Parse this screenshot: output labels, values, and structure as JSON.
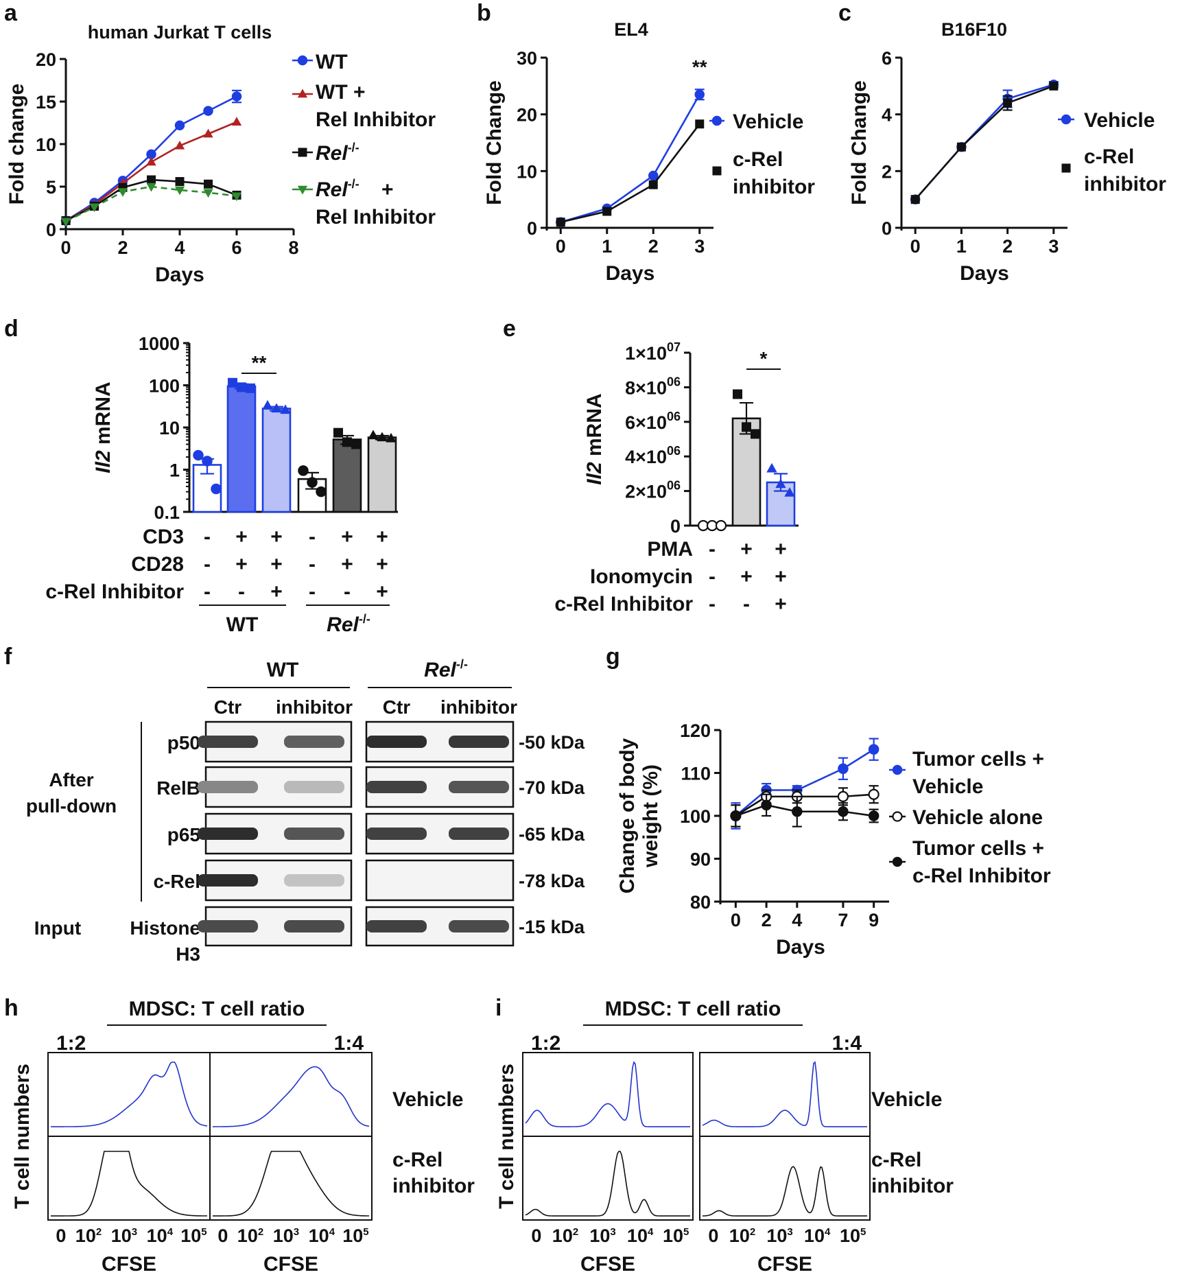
{
  "figure": {
    "width": 1720,
    "height": 1864
  },
  "panel_letters": [
    "a",
    "b",
    "c",
    "d",
    "e",
    "f",
    "g",
    "h",
    "i"
  ],
  "chart_data": [
    {
      "panel": "a",
      "type": "line",
      "title": "human Jurkat T cells",
      "xlabel": "Days",
      "ylabel": "Fold change",
      "xlim": [
        0,
        8
      ],
      "ylim": [
        0,
        20
      ],
      "xticks": [
        0,
        2,
        4,
        6,
        8
      ],
      "yticks": [
        0,
        5,
        10,
        15,
        20
      ],
      "legend": [
        "WT",
        "WT +\nRel Inhibitor",
        "Rel-/-",
        "Rel-/- +\nRel Inhibitor"
      ],
      "series": [
        {
          "name": "WT",
          "color": "#1f3ee0",
          "marker": "circle",
          "dash": false,
          "x": [
            0,
            1,
            2,
            3,
            4,
            5,
            6
          ],
          "y": [
            1.0,
            3.1,
            5.7,
            8.8,
            12.2,
            13.9,
            15.6
          ],
          "err": [
            0,
            0,
            0,
            0,
            0,
            0,
            0.7
          ]
        },
        {
          "name": "WT + Rel Inhibitor",
          "color": "#b22222",
          "marker": "triangle",
          "dash": false,
          "x": [
            0,
            1,
            2,
            3,
            4,
            5,
            6
          ],
          "y": [
            1.0,
            2.9,
            5.4,
            7.9,
            9.8,
            11.2,
            12.6
          ],
          "err": [
            0,
            0,
            0,
            0,
            0,
            0,
            0
          ]
        },
        {
          "name": "Rel-/-",
          "color": "#111111",
          "marker": "square",
          "dash": false,
          "x": [
            0,
            1,
            2,
            3,
            4,
            5,
            6
          ],
          "y": [
            1.0,
            2.7,
            4.9,
            5.8,
            5.6,
            5.3,
            4.0
          ],
          "err": [
            0,
            0,
            0,
            0,
            0,
            0,
            0
          ]
        },
        {
          "name": "Rel-/- + Rel Inhibitor",
          "color": "#2e8b2e",
          "marker": "triangle-down",
          "dash": true,
          "x": [
            0,
            1,
            2,
            3,
            4,
            5,
            6
          ],
          "y": [
            0.9,
            2.6,
            4.4,
            5.0,
            4.6,
            4.3,
            3.9
          ],
          "err": [
            0,
            0,
            0,
            0,
            0,
            0,
            0
          ]
        }
      ]
    },
    {
      "panel": "b",
      "type": "line",
      "title": "EL4",
      "xlabel": "Days",
      "ylabel": "Fold Change",
      "xlim": [
        -0.3,
        3.3
      ],
      "ylim": [
        0,
        30
      ],
      "xticks": [
        0,
        1,
        2,
        3
      ],
      "yticks": [
        0,
        10,
        20,
        30
      ],
      "legend": [
        "Vehicle",
        "c-Rel\ninhibitor"
      ],
      "annotation": "**",
      "series": [
        {
          "name": "Vehicle",
          "color": "#1f3ee0",
          "marker": "circle",
          "x": [
            0,
            1,
            2,
            3
          ],
          "y": [
            1.0,
            3.4,
            9.2,
            23.5
          ],
          "err": [
            0,
            0,
            0,
            0.9
          ]
        },
        {
          "name": "c-Rel inhibitor",
          "color": "#111111",
          "marker": "square",
          "x": [
            0,
            1,
            2,
            3
          ],
          "y": [
            1.0,
            2.9,
            7.6,
            18.3
          ],
          "err": [
            0,
            0,
            0,
            0
          ]
        }
      ]
    },
    {
      "panel": "c",
      "type": "line",
      "title": "B16F10",
      "xlabel": "Days",
      "ylabel": "Fold Change",
      "xlim": [
        -0.3,
        3.3
      ],
      "ylim": [
        0,
        6
      ],
      "xticks": [
        0,
        1,
        2,
        3
      ],
      "yticks": [
        0,
        2,
        4,
        6
      ],
      "legend": [
        "Vehicle",
        "c-Rel\ninhibitor"
      ],
      "series": [
        {
          "name": "Vehicle",
          "color": "#1f3ee0",
          "marker": "circle",
          "x": [
            0,
            1,
            2,
            3
          ],
          "y": [
            1.0,
            2.85,
            4.55,
            5.05
          ],
          "err": [
            0,
            0,
            0.3,
            0.1
          ]
        },
        {
          "name": "c-Rel inhibitor",
          "color": "#111111",
          "marker": "square",
          "x": [
            0,
            1,
            2,
            3
          ],
          "y": [
            1.0,
            2.85,
            4.4,
            5.0
          ],
          "err": [
            0,
            0,
            0.25,
            0
          ]
        }
      ]
    },
    {
      "panel": "d",
      "type": "bar",
      "ylabel_italic": "Il2",
      "ylabel_rest": " mRNA",
      "yscale": "log",
      "ylim": [
        0.1,
        1000
      ],
      "yticks": [
        "0.1",
        "1",
        "10",
        "100",
        "1000"
      ],
      "annotation": "**",
      "row_labels": [
        "CD3",
        "CD28",
        "c-Rel Inhibitor"
      ],
      "signs": [
        [
          "-",
          "+",
          "+",
          "-",
          "+",
          "+"
        ],
        [
          "-",
          "+",
          "+",
          "-",
          "+",
          "+"
        ],
        [
          "-",
          "-",
          "+",
          "-",
          "-",
          "+"
        ]
      ],
      "group_labels": [
        "WT",
        "Rel-/-"
      ],
      "bars": [
        {
          "value": 1.3,
          "err": 0.5,
          "fill": "#ffffff",
          "stroke": "#1f3ee0",
          "dot": "#1f3ee0",
          "marker": "circle",
          "points": [
            2.2,
            1.6,
            0.35
          ]
        },
        {
          "value": 95,
          "err": 12,
          "fill": "#5b6ef0",
          "stroke": "#1f3ee0",
          "dot": "#1f3ee0",
          "marker": "square",
          "points": [
            115,
            90,
            85
          ]
        },
        {
          "value": 28,
          "err": 3,
          "fill": "#b8c0f7",
          "stroke": "#1f3ee0",
          "dot": "#1f3ee0",
          "marker": "triangle",
          "points": [
            33,
            28,
            26
          ]
        },
        {
          "value": 0.6,
          "err": 0.25,
          "fill": "#ffffff",
          "stroke": "#111111",
          "dot": "#111111",
          "marker": "circle",
          "points": [
            0.95,
            0.5,
            0.3
          ]
        },
        {
          "value": 5.2,
          "err": 1.2,
          "fill": "#5c5c5c",
          "stroke": "#111111",
          "dot": "#111111",
          "marker": "square",
          "points": [
            7.5,
            4.5,
            4.0
          ]
        },
        {
          "value": 5.8,
          "err": 0.6,
          "fill": "#cfcfcf",
          "stroke": "#111111",
          "dot": "#111111",
          "marker": "triangle",
          "points": [
            6.5,
            5.8,
            5.5
          ]
        }
      ]
    },
    {
      "panel": "e",
      "type": "bar",
      "ylabel_italic": "Il2",
      "ylabel_rest": " mRNA",
      "ylim": [
        0,
        10000000
      ],
      "yticks": [
        0,
        2000000,
        4000000,
        6000000,
        8000000,
        10000000
      ],
      "ytick_mant": [
        "0",
        "2×10",
        "4×10",
        "6×10",
        "8×10",
        "1×10"
      ],
      "ytick_exp": [
        "",
        "06",
        "06",
        "06",
        "06",
        "07"
      ],
      "annotation": "*",
      "row_labels": [
        "PMA",
        "Ionomycin",
        "c-Rel Inhibitor"
      ],
      "signs": [
        [
          "-",
          "+",
          "+"
        ],
        [
          "-",
          "+",
          "+"
        ],
        [
          "-",
          "-",
          "+"
        ]
      ],
      "bars": [
        {
          "value": 0,
          "err": 0,
          "fill": "#ffffff",
          "stroke": "#111111",
          "dot": "#111111",
          "marker": "open-circle",
          "points": [
            0,
            0,
            0
          ]
        },
        {
          "value": 6200000,
          "err": 900000,
          "fill": "#d3d3d3",
          "stroke": "#111111",
          "dot": "#111111",
          "marker": "square",
          "points": [
            7600000,
            5700000,
            5300000
          ]
        },
        {
          "value": 2500000,
          "err": 500000,
          "fill": "#c0c8f5",
          "stroke": "#1f3ee0",
          "dot": "#1f3ee0",
          "marker": "triangle",
          "points": [
            3300000,
            2400000,
            1900000
          ]
        }
      ]
    },
    {
      "panel": "g",
      "type": "line",
      "xlabel": "Days",
      "ylabel": "Change of body\nweight (%)",
      "xlim": [
        -1,
        10
      ],
      "ylim": [
        80,
        120
      ],
      "xticks": [
        0,
        2,
        4,
        7,
        9
      ],
      "yticks": [
        80,
        90,
        100,
        110,
        120
      ],
      "legend": [
        "Tumor cells +\nVehicle",
        "Vehicle alone",
        "Tumor cells +\nc-Rel Inhibitor"
      ],
      "series": [
        {
          "name": "Tumor cells + Vehicle",
          "color": "#1f3ee0",
          "marker": "circle",
          "x": [
            0,
            2,
            4,
            7,
            9
          ],
          "y": [
            100,
            106,
            106,
            111,
            115.5
          ],
          "err": [
            3,
            1.5,
            1,
            2.5,
            2.5
          ]
        },
        {
          "name": "Vehicle alone",
          "color": "#111111",
          "marker": "open-circle",
          "x": [
            0,
            2,
            4,
            7,
            9
          ],
          "y": [
            100,
            104.5,
            104.5,
            104.5,
            105
          ],
          "err": [
            2.5,
            1.5,
            1.5,
            2,
            2
          ]
        },
        {
          "name": "Tumor cells + c-Rel Inhibitor",
          "color": "#111111",
          "marker": "circle",
          "x": [
            0,
            2,
            4,
            7,
            9
          ],
          "y": [
            100,
            102.5,
            101,
            101,
            100
          ],
          "err": [
            2.5,
            2.5,
            3.5,
            2,
            1.5
          ]
        }
      ]
    }
  ],
  "panel_f": {
    "groups": [
      "WT",
      "Rel-/-"
    ],
    "lanes": [
      "Ctr",
      "inhibitor",
      "Ctr",
      "inhibitor"
    ],
    "section_labels": [
      "After\npull-down",
      "Input"
    ],
    "rows": [
      {
        "label": "p50",
        "kda": "-50 kDa",
        "intensity": [
          0.85,
          0.7,
          0.95,
          0.9
        ]
      },
      {
        "label": "RelB",
        "kda": "-70 kDa",
        "intensity": [
          0.5,
          0.25,
          0.85,
          0.75
        ]
      },
      {
        "label": "p65",
        "kda": "-65 kDa",
        "intensity": [
          0.95,
          0.75,
          0.85,
          0.85
        ]
      },
      {
        "label": "c-Rel",
        "kda": "-78 kDa",
        "intensity": [
          0.95,
          0.2,
          0.0,
          0.0
        ]
      },
      {
        "label": "Histone\nH3",
        "kda": "-15 kDa",
        "intensity": [
          0.8,
          0.8,
          0.85,
          0.8
        ]
      }
    ]
  },
  "panel_h": {
    "header": "MDSC: T cell ratio",
    "ratios": [
      "1:2",
      "1:4"
    ],
    "row_labels": [
      "Vehicle",
      "c-Rel\ninhibitor"
    ],
    "ylabel": "T cell numbers",
    "xlabel": "CFSE",
    "xticks": [
      "0",
      "10",
      "10",
      "10",
      "10"
    ],
    "xtick_exp": [
      "",
      "2",
      "3",
      "4",
      "5"
    ]
  },
  "panel_i": {
    "header": "MDSC: T cell ratio",
    "ratios": [
      "1:2",
      "1:4"
    ],
    "row_labels": [
      "Vehicle",
      "c-Rel\ninhibitor"
    ],
    "ylabel": "T cell numbers",
    "xlabel": "CFSE",
    "xticks": [
      "0",
      "10",
      "10",
      "10",
      "10"
    ],
    "xtick_exp": [
      "",
      "2",
      "3",
      "4",
      "5"
    ]
  }
}
